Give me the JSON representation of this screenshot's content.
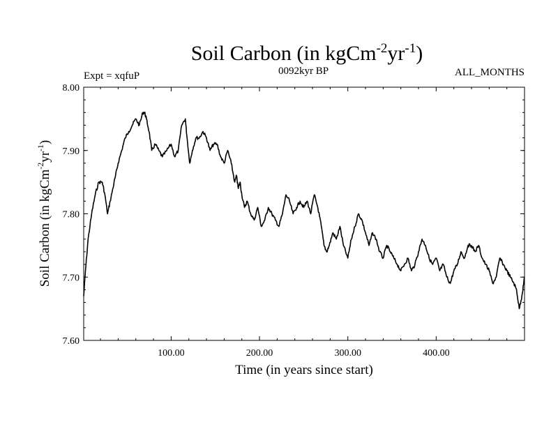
{
  "chart_data": {
    "type": "line",
    "title": {
      "base": "Soil Carbon (in kgCm",
      "exp1": "-2",
      "mid": "yr",
      "exp2": "-1",
      "end": ")"
    },
    "subtitle_left": "Expt = xqfuP",
    "subtitle_center": "0092kyr BP",
    "subtitle_right": "ALL_MONTHS",
    "xlabel": "Time (in years since start)",
    "ylabel": {
      "base": "Soil Carbon (in kgCm",
      "exp1": "-2",
      "mid": "yr",
      "exp2": "-1",
      "end": ")"
    },
    "xlim": [
      1,
      500
    ],
    "ylim": [
      7.6,
      8.0
    ],
    "xticks": [
      100,
      200,
      300,
      400
    ],
    "xtick_labels": [
      "100.00",
      "200.00",
      "300.00",
      "400.00"
    ],
    "yticks": [
      7.6,
      7.7,
      7.8,
      7.9,
      8.0
    ],
    "ytick_labels": [
      "7.60",
      "7.70",
      "7.80",
      "7.90",
      "8.00"
    ],
    "series": [
      {
        "name": "Soil Carbon",
        "color": "#000000",
        "x": [
          1,
          3,
          6,
          10,
          14,
          18,
          22,
          25,
          28,
          31,
          34,
          37,
          40,
          44,
          48,
          52,
          56,
          60,
          64,
          68,
          70,
          72,
          75,
          78,
          82,
          86,
          90,
          95,
          100,
          104,
          108,
          112,
          116,
          118,
          121,
          124,
          128,
          132,
          136,
          140,
          144,
          148,
          152,
          156,
          160,
          164,
          168,
          172,
          174,
          176,
          178,
          180,
          183,
          186,
          190,
          194,
          198,
          202,
          206,
          210,
          214,
          218,
          222,
          226,
          230,
          234,
          238,
          242,
          246,
          250,
          254,
          258,
          262,
          266,
          270,
          273,
          276,
          279,
          283,
          287,
          291,
          295,
          300,
          304,
          308,
          312,
          316,
          320,
          324,
          328,
          332,
          336,
          340,
          344,
          348,
          352,
          356,
          360,
          364,
          368,
          372,
          376,
          380,
          384,
          388,
          392,
          396,
          400,
          404,
          408,
          412,
          416,
          420,
          424,
          428,
          432,
          436,
          440,
          444,
          448,
          452,
          456,
          460,
          464,
          468,
          472,
          476,
          480,
          484,
          488,
          491,
          494,
          497,
          500
        ],
        "y": [
          7.67,
          7.71,
          7.76,
          7.8,
          7.83,
          7.85,
          7.85,
          7.83,
          7.8,
          7.82,
          7.84,
          7.86,
          7.88,
          7.9,
          7.92,
          7.93,
          7.94,
          7.95,
          7.94,
          7.96,
          7.96,
          7.95,
          7.93,
          7.9,
          7.91,
          7.9,
          7.89,
          7.9,
          7.91,
          7.89,
          7.9,
          7.94,
          7.95,
          7.92,
          7.88,
          7.9,
          7.92,
          7.92,
          7.93,
          7.92,
          7.9,
          7.91,
          7.91,
          7.89,
          7.88,
          7.9,
          7.88,
          7.85,
          7.86,
          7.84,
          7.85,
          7.83,
          7.81,
          7.82,
          7.8,
          7.79,
          7.81,
          7.78,
          7.79,
          7.81,
          7.8,
          7.79,
          7.78,
          7.8,
          7.83,
          7.82,
          7.8,
          7.81,
          7.82,
          7.81,
          7.82,
          7.8,
          7.83,
          7.81,
          7.78,
          7.75,
          7.74,
          7.75,
          7.77,
          7.76,
          7.78,
          7.75,
          7.73,
          7.76,
          7.78,
          7.8,
          7.79,
          7.77,
          7.75,
          7.77,
          7.76,
          7.74,
          7.73,
          7.75,
          7.74,
          7.73,
          7.72,
          7.71,
          7.72,
          7.73,
          7.71,
          7.72,
          7.74,
          7.76,
          7.75,
          7.73,
          7.72,
          7.73,
          7.71,
          7.72,
          7.7,
          7.69,
          7.71,
          7.72,
          7.74,
          7.73,
          7.75,
          7.75,
          7.74,
          7.75,
          7.73,
          7.72,
          7.71,
          7.69,
          7.7,
          7.73,
          7.72,
          7.71,
          7.7,
          7.69,
          7.68,
          7.65,
          7.67,
          7.7
        ]
      }
    ]
  }
}
